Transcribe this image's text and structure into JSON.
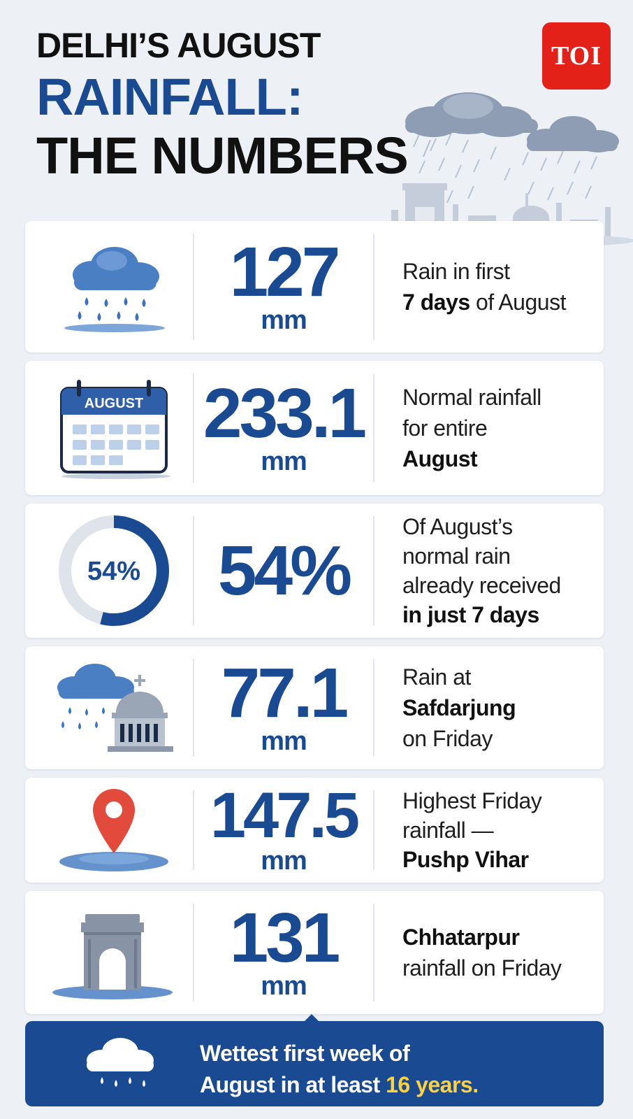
{
  "header": {
    "line1": "DELHI’S AUGUST",
    "line2": "RAINFALL:",
    "line3": "THE NUMBERS",
    "logo_text": "TOI"
  },
  "stats": [
    {
      "value": "127",
      "unit": "mm",
      "desc": [
        {
          "text": "Rain in first",
          "bold": false
        },
        {
          "text": "7 days",
          "bold": true,
          "rest": " of August"
        }
      ],
      "icon": "rain-cloud-icon"
    },
    {
      "value": "233.1",
      "unit": "mm",
      "desc_lines": [
        "Normal rainfall",
        "for entire",
        "August"
      ],
      "calendar_label": "AUGUST",
      "icon": "calendar-icon"
    },
    {
      "value": "54%",
      "ring_label": "54%",
      "ring_fraction": 0.54,
      "desc_lines": [
        "Of August’s",
        "normal rain",
        "already received",
        "in just 7 days"
      ],
      "icon": "progress-ring-icon"
    },
    {
      "value": "77.1",
      "unit": "mm",
      "desc_lines": [
        "Rain at",
        "Safdarjung",
        "on Friday"
      ],
      "icon": "rain-building-icon"
    },
    {
      "value": "147.5",
      "unit": "mm",
      "desc_lines": [
        "Highest Friday",
        "rainfall —",
        "Pushp Vihar"
      ],
      "icon": "location-pin-icon"
    },
    {
      "value": "131",
      "unit": "mm",
      "desc_lines": [
        "Chhatarpur",
        "rainfall on Friday"
      ],
      "icon": "india-gate-icon"
    }
  ],
  "footer": {
    "line1": "Wettest first week of",
    "line2_pre": "August in at least ",
    "line2_highlight": "16 years."
  },
  "colors": {
    "brand_blue": "#1a4a92",
    "toi_red": "#e32119",
    "highlight_yellow": "#ffd23c",
    "icon_blue": "#4a7fc4"
  }
}
